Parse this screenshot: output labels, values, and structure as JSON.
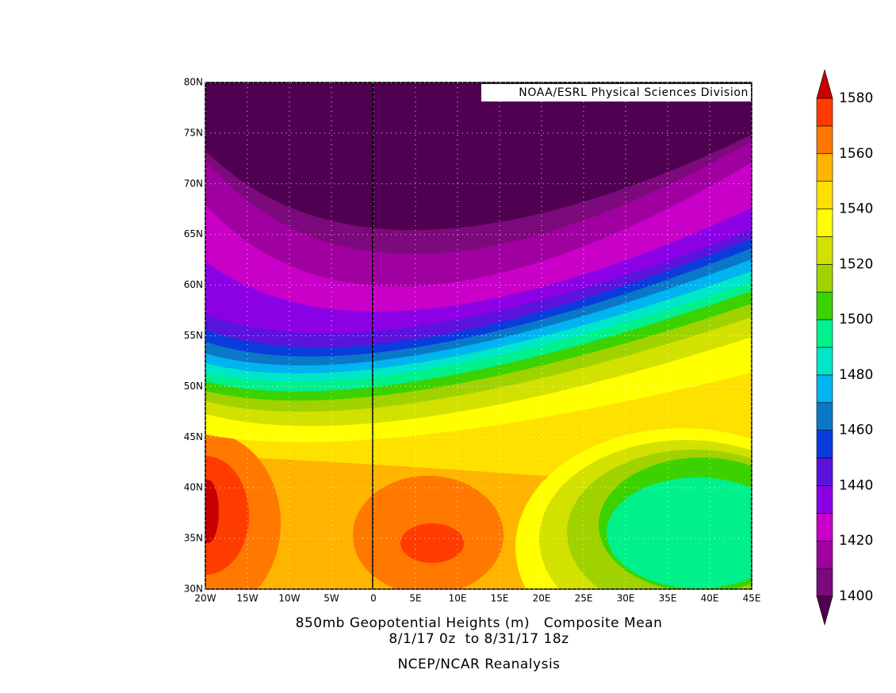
{
  "map": {
    "credit": "NOAA/ESRL Physical Sciences Division",
    "title": "850mb Geopotential Heights (m)   Composite Mean",
    "subtitle": "8/1/17 0z  to 8/31/17 18z",
    "source": "NCEP/NCAR Reanalysis",
    "x_tick_labels": [
      "20W",
      "15W",
      "10W",
      "5W",
      "0",
      "5E",
      "10E",
      "15E",
      "20E",
      "25E",
      "30E",
      "35E",
      "40E",
      "45E"
    ],
    "y_tick_labels": [
      "80N",
      "75N",
      "70N",
      "65N",
      "60N",
      "55N",
      "50N",
      "45N",
      "40N",
      "35N",
      "30N"
    ]
  },
  "colorbar": {
    "range": [
      1400,
      1580
    ],
    "ticks": [
      1400,
      1420,
      1440,
      1460,
      1480,
      1500,
      1520,
      1540,
      1560,
      1580
    ],
    "colors": [
      "#7c0a7c",
      "#a000a0",
      "#c800c8",
      "#8c00e6",
      "#5a14dc",
      "#0a3cdc",
      "#0a78c8",
      "#00b4f0",
      "#00e6c8",
      "#00f08c",
      "#3cd200",
      "#a0d200",
      "#d2e100",
      "#ffff00",
      "#ffe100",
      "#ffb400",
      "#ff7800",
      "#ff3c00"
    ],
    "under_color": "#500050",
    "over_color": "#c80000"
  }
}
